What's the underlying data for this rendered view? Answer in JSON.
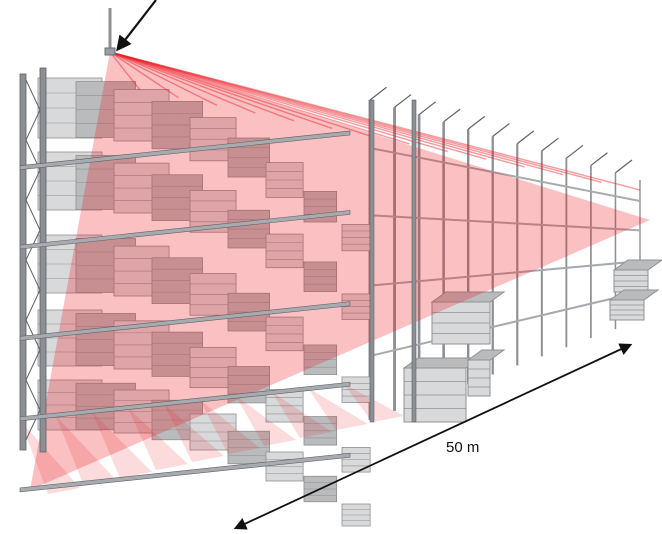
{
  "diagram": {
    "distance_label": "50 m",
    "colors": {
      "background": "#ffffff",
      "beam": "#ee1c25",
      "rack_frame": "#8c8f93",
      "rack_frame_dark": "#5e6165",
      "beam_bar": "#a7aaae",
      "box_light": "#d8d9da",
      "box_mid": "#b9bbbd",
      "box_dark": "#8e9194",
      "arrow": "#111111"
    },
    "icons": {
      "sensor": "sensor-icon",
      "pointer": "arrow-down-left-icon",
      "dimension": "double-arrow-icon"
    }
  }
}
